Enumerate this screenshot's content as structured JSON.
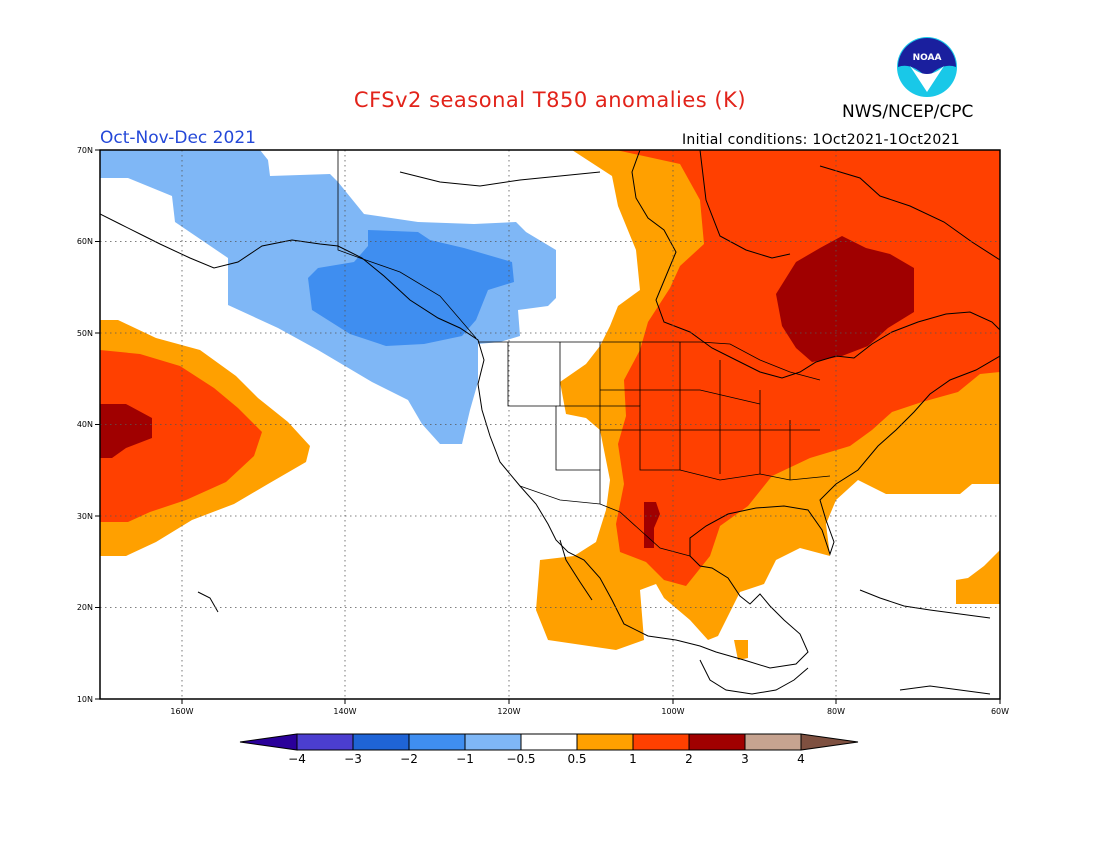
{
  "title": "CFSv2 seasonal T850 anomalies (K)",
  "organization": "NWS/NCEP/CPC",
  "logo_text": "NOAA",
  "season": "Oct-Nov-Dec 2021",
  "initial_conditions": "Initial conditions: 1Oct2021-1Oct2021",
  "map": {
    "projection": "lat-lon",
    "lon_range": [
      -170,
      -60
    ],
    "lat_range": [
      10,
      70
    ],
    "lat_labels": [
      "70N",
      "60N",
      "50N",
      "40N",
      "30N",
      "20N",
      "10N"
    ],
    "lon_labels": [
      "160W",
      "140W",
      "120W",
      "100W",
      "80W",
      "60W"
    ],
    "gridlines": "dotted"
  },
  "colorbar": {
    "labels": [
      "-4",
      "-3",
      "-2",
      "-1",
      "-0.5",
      "0.5",
      "1",
      "2",
      "3",
      "4"
    ],
    "colors": [
      "#2a009a",
      "#4b3ecf",
      "#1f64d6",
      "#3f8ef0",
      "#7fb7f6",
      "#ffffff",
      "#ffa000",
      "#ff4000",
      "#a00000",
      "#c6a390",
      "#7e5040"
    ],
    "units": "K"
  },
  "anomaly_regions": [
    {
      "category": "cold -1 to -0.5",
      "color": "#7fb7f6",
      "location": "Gulf of Alaska, Alaska, western Canada"
    },
    {
      "category": "cold -2 to -1",
      "color": "#3f8ef0",
      "location": "British Columbia coast"
    },
    {
      "category": "warm 0.5 to 1",
      "color": "#ffa000",
      "location": "central Pacific, Mexico, eastern Canada, western Atlantic"
    },
    {
      "category": "warm 1 to 2",
      "color": "#ff4000",
      "location": "central and eastern US, central Canada, central Pacific"
    },
    {
      "category": "warm 2 to 3",
      "color": "#a00000",
      "location": "Hudson Bay region, central Pacific near 40N 170W, west Texas"
    }
  ]
}
